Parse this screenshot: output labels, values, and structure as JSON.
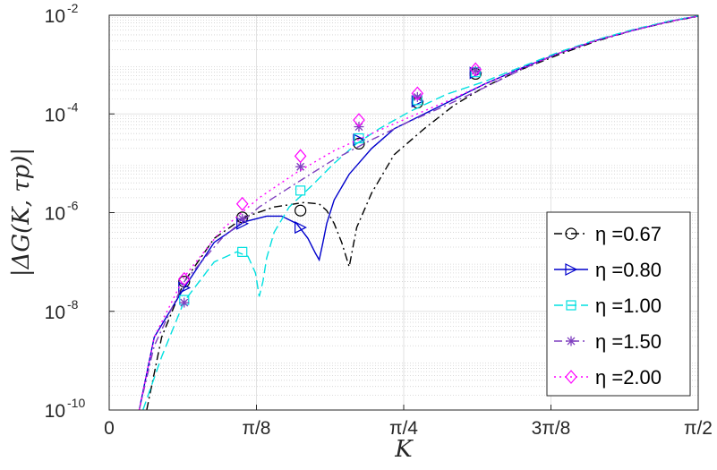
{
  "chart_data": {
    "type": "line",
    "xlabel": "K",
    "ylabel": "|ΔG(K, τp)|",
    "xlim": [
      0,
      1.5708
    ],
    "ylim": [
      1e-10,
      0.01
    ],
    "yscale": "log",
    "grid": true,
    "legend_position": "bottom-right",
    "x_tick_labels": [
      "0",
      "π/8",
      "π/4",
      "3π/8",
      "π/2"
    ],
    "y_tick_labels": [
      {
        "base": "10",
        "exp": "-10"
      },
      {
        "base": "10",
        "exp": "-8"
      },
      {
        "base": "10",
        "exp": "-6"
      },
      {
        "base": "10",
        "exp": "-4"
      },
      {
        "base": "10",
        "exp": "-2"
      }
    ],
    "series": [
      {
        "name": "η =0.67",
        "eta": "0.67",
        "color": "#000000",
        "dash": "9 4 2 4",
        "marker": "circle",
        "x": [
          0.1,
          0.14,
          0.2,
          0.28,
          0.36,
          0.44,
          0.52,
          0.56,
          0.58,
          0.6,
          0.62,
          0.64,
          0.66,
          0.7,
          0.76,
          0.84,
          0.92,
          1.0,
          1.1,
          1.2,
          1.3,
          1.4,
          1.5,
          1.5708
        ],
        "y": [
          1e-10,
          3e-09,
          4e-08,
          3e-07,
          8e-07,
          1.3e-06,
          1.6e-06,
          1.5e-06,
          1.1e-06,
          6e-07,
          2.5e-07,
          8e-08,
          5e-07,
          2.5e-06,
          1.5e-05,
          5e-05,
          0.00015,
          0.00035,
          0.0008,
          0.0016,
          0.003,
          0.005,
          0.0075,
          0.0095
        ],
        "marker_x": [
          0.2,
          0.355,
          0.51,
          0.666,
          0.822,
          0.977
        ],
        "marker_y": [
          4e-08,
          8e-07,
          1.1e-06,
          2.5e-05,
          0.00017,
          0.00065
        ]
      },
      {
        "name": "η =0.80",
        "eta": "0.80",
        "color": "#0000cc",
        "dash": "",
        "marker": "triangle-right",
        "x": [
          0.08,
          0.12,
          0.2,
          0.28,
          0.36,
          0.42,
          0.46,
          0.5,
          0.53,
          0.55,
          0.56,
          0.57,
          0.58,
          0.6,
          0.64,
          0.7,
          0.76,
          0.84,
          0.92,
          1.0,
          1.1,
          1.2,
          1.3,
          1.4,
          1.5,
          1.5708
        ],
        "y": [
          1e-10,
          3e-09,
          3e-08,
          2.5e-07,
          6.5e-07,
          8.5e-07,
          8.5e-07,
          6e-07,
          3e-07,
          1.5e-07,
          1.1e-07,
          2.5e-07,
          6e-07,
          1.8e-06,
          6e-06,
          2e-05,
          5e-05,
          0.0001,
          0.0002,
          0.0004,
          0.00085,
          0.0017,
          0.0031,
          0.005,
          0.0077,
          0.0096
        ],
        "marker_x": [
          0.2,
          0.355,
          0.51,
          0.666,
          0.822,
          0.977
        ],
        "marker_y": [
          3e-08,
          6e-07,
          5e-07,
          3e-05,
          0.00018,
          0.00068
        ]
      },
      {
        "name": "η =1.00",
        "eta": "1.00",
        "color": "#00e0e0",
        "dash": "10 5",
        "marker": "square",
        "x": [
          0.09,
          0.14,
          0.2,
          0.28,
          0.34,
          0.37,
          0.39,
          0.4,
          0.41,
          0.42,
          0.44,
          0.48,
          0.54,
          0.6,
          0.66,
          0.72,
          0.8,
          0.9,
          1.0,
          1.1,
          1.2,
          1.3,
          1.4,
          1.5,
          1.5708
        ],
        "y": [
          1e-10,
          1.2e-09,
          1.6e-08,
          1e-07,
          1.6e-07,
          1.3e-07,
          6e-08,
          2e-08,
          4e-08,
          1.2e-07,
          4e-07,
          1.3e-06,
          3.5e-06,
          1e-05,
          2.5e-05,
          5e-05,
          0.00011,
          0.00025,
          0.00045,
          0.0009,
          0.0018,
          0.0032,
          0.0052,
          0.0078,
          0.0097
        ],
        "marker_x": [
          0.2,
          0.355,
          0.51,
          0.666,
          0.822,
          0.977
        ],
        "marker_y": [
          1.7e-08,
          1.6e-07,
          2.8e-06,
          3.2e-05,
          0.00019,
          0.0007
        ]
      },
      {
        "name": "η =1.50",
        "eta": "1.50",
        "color": "#7f3fbf",
        "dash": "9 4 2 4",
        "marker": "asterisk",
        "x": [
          0.08,
          0.12,
          0.2,
          0.3,
          0.4,
          0.5,
          0.6,
          0.7,
          0.8,
          0.9,
          1.0,
          1.1,
          1.2,
          1.3,
          1.4,
          1.5,
          1.5708
        ],
        "y": [
          1e-10,
          2e-09,
          4e-08,
          3e-07,
          1.3e-06,
          4e-06,
          1.2e-05,
          3e-05,
          7e-05,
          0.00015,
          0.00034,
          0.0008,
          0.0017,
          0.0031,
          0.005,
          0.0076,
          0.0096
        ],
        "marker_x": [
          0.2,
          0.355,
          0.51,
          0.666,
          0.822,
          0.977
        ],
        "marker_y": [
          1.5e-08,
          7.5e-07,
          8.5e-06,
          5.5e-05,
          0.00022,
          0.00075
        ]
      },
      {
        "name": "η =2.00",
        "eta": "2.00",
        "color": "#ff00ff",
        "dash": "2 4",
        "marker": "diamond",
        "x": [
          0.08,
          0.12,
          0.2,
          0.3,
          0.4,
          0.5,
          0.6,
          0.7,
          0.8,
          0.9,
          1.0,
          1.1,
          1.2,
          1.3,
          1.4,
          1.5,
          1.5708
        ],
        "y": [
          1e-10,
          3e-09,
          5e-08,
          4.5e-07,
          2e-06,
          6.5e-06,
          1.8e-05,
          4e-05,
          8.5e-05,
          0.00018,
          0.0004,
          0.00085,
          0.0017,
          0.0031,
          0.005,
          0.0076,
          0.0096
        ],
        "marker_x": [
          0.2,
          0.355,
          0.51,
          0.666,
          0.822,
          0.977
        ],
        "marker_y": [
          4.5e-08,
          1.5e-06,
          1.4e-05,
          7.5e-05,
          0.00026,
          0.0008
        ]
      }
    ]
  }
}
